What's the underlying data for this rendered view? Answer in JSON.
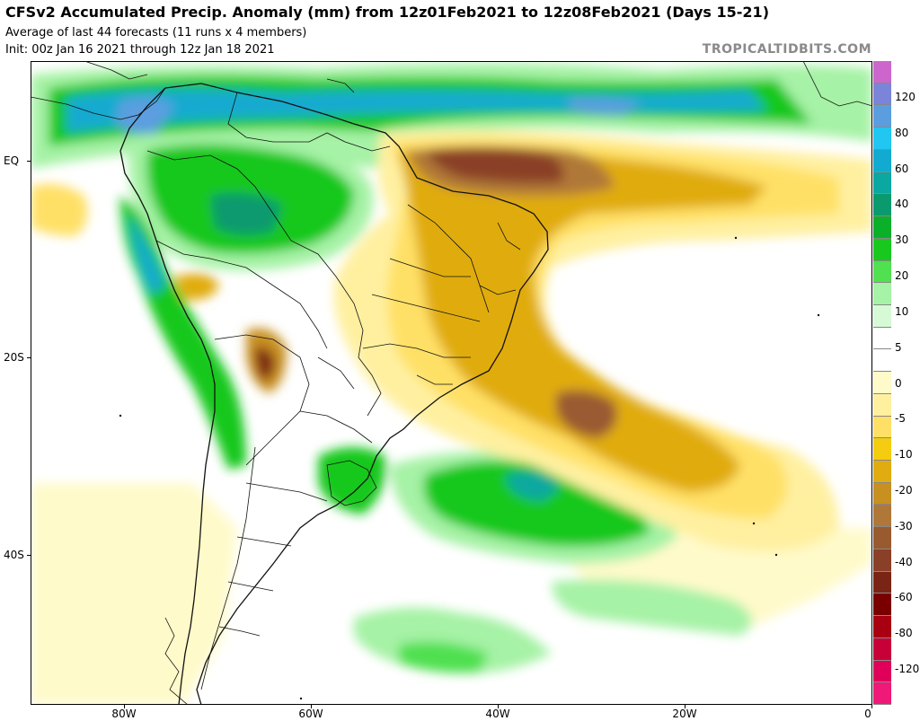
{
  "header": {
    "title": "CFSv2 Accumulated Precip. Anomaly (mm) from 12z01Feb2021 to 12z08Feb2021 (Days 15-21)",
    "subtitle": "Average of last 44 forecasts (11 runs x 4 members)",
    "init": "Init: 00z Jan 16 2021 through 12z Jan 18 2021",
    "brand": "TROPICALTIDBITS.COM"
  },
  "axes": {
    "lat_labels": [
      "EQ",
      "20S",
      "40S"
    ],
    "lon_labels": [
      "80W",
      "60W",
      "40W",
      "20W",
      "0"
    ]
  },
  "colorbar": {
    "labels": [
      "120",
      "80",
      "60",
      "40",
      "30",
      "20",
      "10",
      "5",
      "0",
      "-5",
      "-10",
      "-20",
      "-30",
      "-40",
      "-60",
      "-80",
      "-120"
    ],
    "colors": [
      "#cc66cc",
      "#7a84d8",
      "#5b9ee0",
      "#21c7f0",
      "#12aad0",
      "#0aa8a0",
      "#0a9a6e",
      "#0ab02a",
      "#18c81e",
      "#50e050",
      "#a6f2a6",
      "#d6fad6",
      "#ffffff",
      "#ffffff",
      "#fffaca",
      "#fff0a0",
      "#ffe066",
      "#f4cc10",
      "#e0ac10",
      "#c89020",
      "#b07838",
      "#9a5a30",
      "#8a4028",
      "#7a2416",
      "#7a0000",
      "#a80010",
      "#c80038",
      "#e0005a",
      "#f01878"
    ]
  }
}
